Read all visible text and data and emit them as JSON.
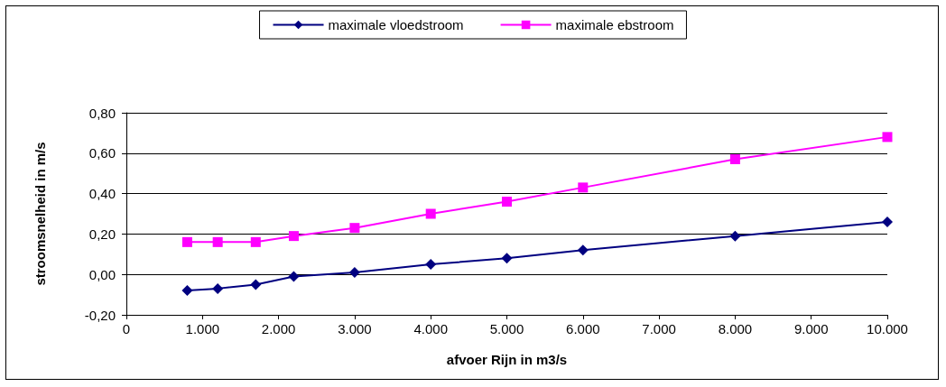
{
  "chart_data": {
    "type": "line",
    "xlabel": "afvoer Rijn in m3/s",
    "ylabel": "stroomsnelheid in m/s",
    "x": [
      800,
      1200,
      1700,
      2200,
      3000,
      4000,
      5000,
      6000,
      8000,
      10000
    ],
    "series": [
      {
        "name": "maximale vloedstroom",
        "color": "#000080",
        "marker": "diamond",
        "values": [
          -0.08,
          -0.07,
          -0.05,
          -0.01,
          0.01,
          0.05,
          0.08,
          0.12,
          0.19,
          0.26
        ]
      },
      {
        "name": "maximale ebstroom",
        "color": "#ff00ff",
        "marker": "square",
        "values": [
          0.16,
          0.16,
          0.16,
          0.19,
          0.23,
          0.3,
          0.36,
          0.43,
          0.57,
          0.68
        ]
      }
    ],
    "xlim": [
      0,
      10000
    ],
    "xticks": [
      0,
      {
        "value": 1000,
        "label": "1.000"
      },
      {
        "value": 2000,
        "label": "2.000"
      },
      {
        "value": 3000,
        "label": "3.000"
      },
      {
        "value": 4000,
        "label": "4.000"
      },
      {
        "value": 5000,
        "label": "5.000"
      },
      {
        "value": 6000,
        "label": "6.000"
      },
      {
        "value": 7000,
        "label": "7.000"
      },
      {
        "value": 8000,
        "label": "8.000"
      },
      {
        "value": 9000,
        "label": "9.000"
      },
      {
        "value": 10000,
        "label": "10.000"
      }
    ],
    "ylim": [
      -0.2,
      0.8
    ],
    "yticks": [
      {
        "value": -0.2,
        "label": "-0,20"
      },
      {
        "value": 0,
        "label": "0,00"
      },
      {
        "value": 0.2,
        "label": "0,20"
      },
      {
        "value": 0.4,
        "label": "0,40"
      },
      {
        "value": 0.6,
        "label": "0,60"
      },
      {
        "value": 0.8,
        "label": "0,80"
      }
    ],
    "grid": "y",
    "legend": "top",
    "line_style": "solid"
  }
}
